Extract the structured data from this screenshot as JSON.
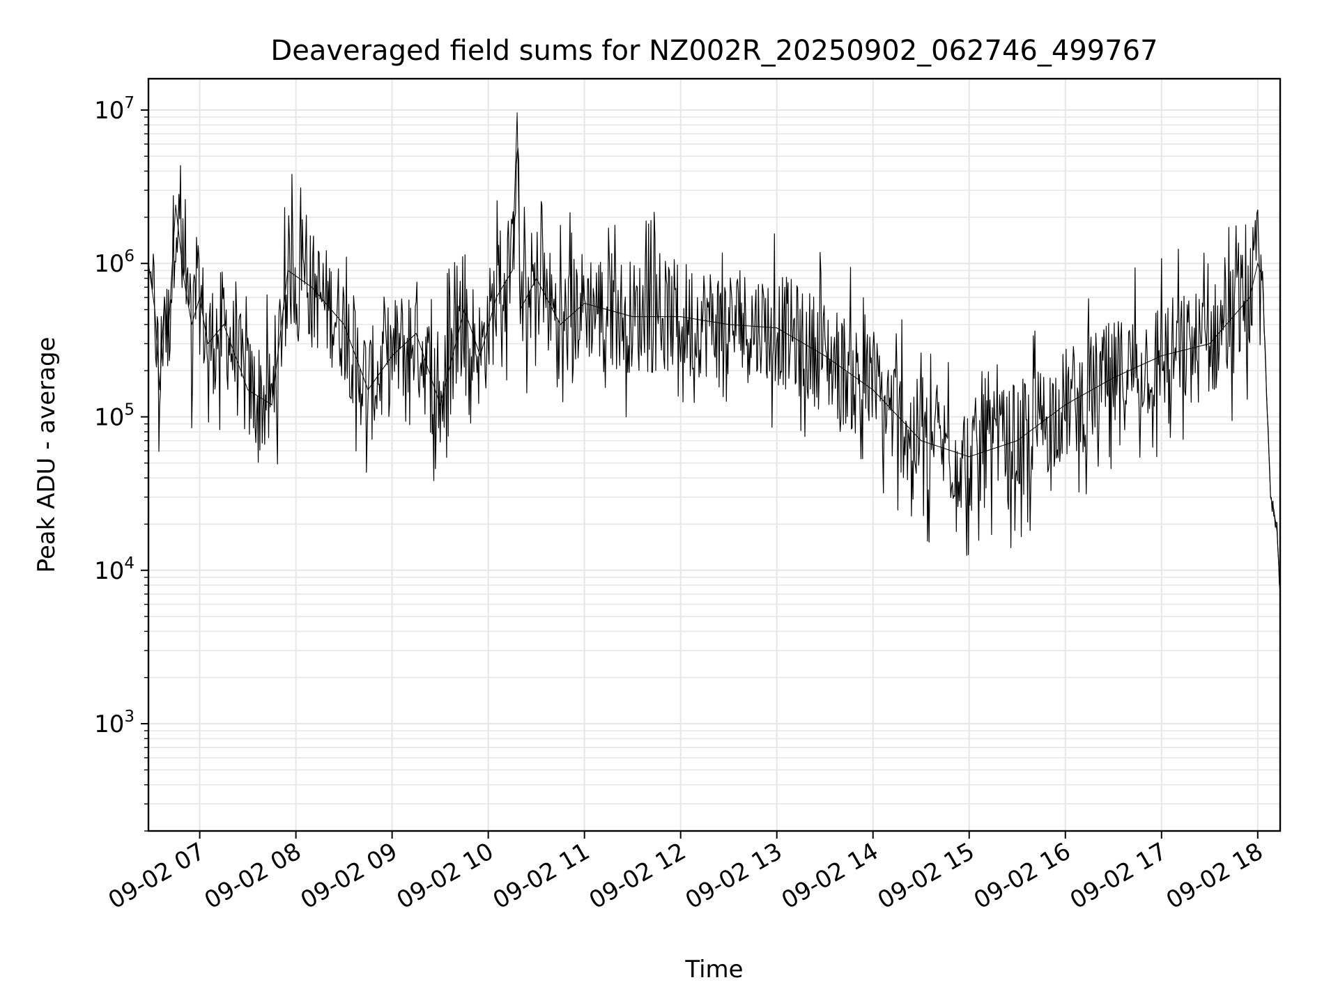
{
  "chart_data": {
    "type": "line",
    "title": "Deaveraged field sums for NZ002R_20250902_062746_499767",
    "xlabel": "Time",
    "ylabel": "Peak ADU - average",
    "y_scale": "log",
    "ylim": [
      200,
      16000000
    ],
    "xlim": [
      "09-02 06:28",
      "09-02 18:14"
    ],
    "grid": true,
    "line_color": "#000000",
    "grid_color": "#e6e6e6",
    "x_ticks": [
      "09-02 07",
      "09-02 08",
      "09-02 09",
      "09-02 10",
      "09-02 11",
      "09-02 12",
      "09-02 13",
      "09-02 14",
      "09-02 15",
      "09-02 16",
      "09-02 17",
      "09-02 18"
    ],
    "y_ticks": [
      {
        "base": "10",
        "exp": "3",
        "value": 1000
      },
      {
        "base": "10",
        "exp": "4",
        "value": 10000
      },
      {
        "base": "10",
        "exp": "5",
        "value": 100000
      },
      {
        "base": "10",
        "exp": "6",
        "value": 1000000
      },
      {
        "base": "10",
        "exp": "7",
        "value": 10000000
      }
    ],
    "series": [
      {
        "x": [
          "09-02 06:28",
          "09-02 06:32",
          "09-02 06:35",
          "09-02 06:38",
          "09-02 06:40",
          "09-02 06:45",
          "09-02 06:50",
          "09-02 06:55",
          "09-02 07:00",
          "09-02 07:05",
          "09-02 07:15",
          "09-02 07:30",
          "09-02 07:45",
          "09-02 07:55",
          "09-02 08:10",
          "09-02 08:30",
          "09-02 08:45",
          "09-02 09:00",
          "09-02 09:15",
          "09-02 09:30",
          "09-02 09:45",
          "09-02 09:55",
          "09-02 10:05",
          "09-02 10:15",
          "09-02 10:18",
          "09-02 10:20",
          "09-02 10:30",
          "09-02 10:45",
          "09-02 11:00",
          "09-02 11:30",
          "09-02 12:00",
          "09-02 12:30",
          "09-02 13:00",
          "09-02 13:30",
          "09-02 14:00",
          "09-02 14:30",
          "09-02 15:00",
          "09-02 15:30",
          "09-02 16:00",
          "09-02 16:30",
          "09-02 17:00",
          "09-02 17:30",
          "09-02 17:55",
          "09-02 18:00",
          "09-02 18:03",
          "09-02 18:05",
          "09-02 18:08",
          "09-02 18:10",
          "09-02 18:12",
          "09-02 18:14"
        ],
        "values": [
          1000000,
          500000,
          150000,
          600000,
          300000,
          2400000,
          800000,
          400000,
          600000,
          300000,
          400000,
          150000,
          120000,
          900000,
          700000,
          400000,
          150000,
          250000,
          350000,
          120000,
          500000,
          250000,
          600000,
          900000,
          9600000,
          500000,
          800000,
          400000,
          550000,
          450000,
          450000,
          400000,
          380000,
          250000,
          150000,
          70000,
          55000,
          70000,
          120000,
          180000,
          250000,
          300000,
          600000,
          1000000,
          800000,
          200000,
          30000,
          25000,
          18000,
          7000
        ]
      }
    ]
  }
}
